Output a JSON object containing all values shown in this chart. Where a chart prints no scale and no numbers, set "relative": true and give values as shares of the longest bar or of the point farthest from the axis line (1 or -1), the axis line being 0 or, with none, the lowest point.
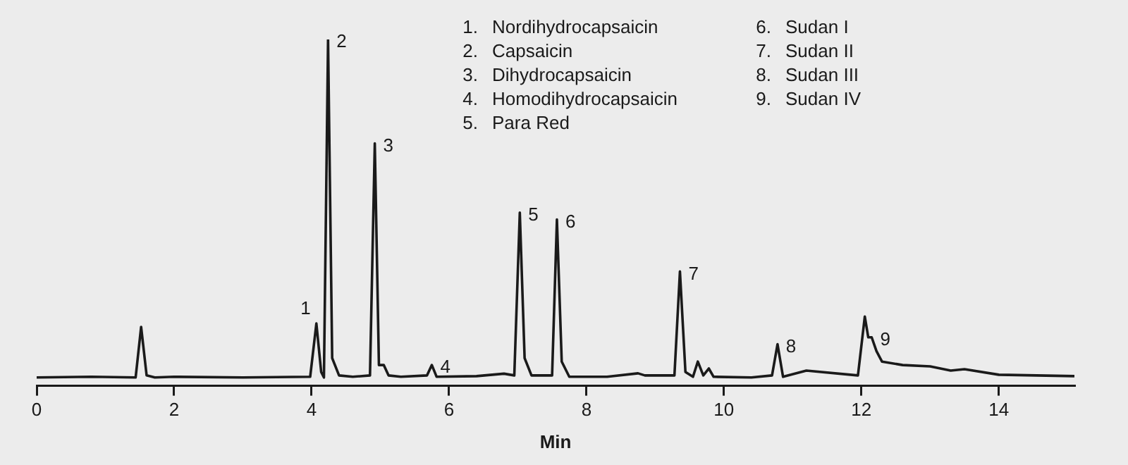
{
  "chart_data": {
    "type": "line",
    "relative": true,
    "xlabel": "Min",
    "xlim": [
      0,
      15.1
    ],
    "xticks": [
      0,
      2,
      4,
      6,
      8,
      10,
      12,
      14
    ],
    "grid": false,
    "legend": false,
    "marker": "none",
    "line_style": "solid",
    "series": [
      {
        "color": "#1a1a1a",
        "x": [
          0,
          0.8,
          1.44,
          1.52,
          1.6,
          1.72,
          2.0,
          3.0,
          3.98,
          4.07,
          4.14,
          4.18,
          4.24,
          4.3,
          4.4,
          4.6,
          4.85,
          4.92,
          4.98,
          5.05,
          5.12,
          5.3,
          5.68,
          5.75,
          5.82,
          6.4,
          6.8,
          6.95,
          7.03,
          7.1,
          7.2,
          7.45,
          7.5,
          7.57,
          7.64,
          7.75,
          8.3,
          8.75,
          8.85,
          9.28,
          9.36,
          9.44,
          9.55,
          9.62,
          9.7,
          9.78,
          9.85,
          10.4,
          10.7,
          10.78,
          10.86,
          11.2,
          11.95,
          12.05,
          12.1,
          12.15,
          12.22,
          12.3,
          12.6,
          13.0,
          13.3,
          13.5,
          14.0,
          15.1
        ],
        "values": [
          0.024,
          0.026,
          0.024,
          0.17,
          0.03,
          0.024,
          0.026,
          0.024,
          0.026,
          0.18,
          0.04,
          0.024,
          1,
          0.08,
          0.03,
          0.026,
          0.03,
          0.7,
          0.06,
          0.06,
          0.03,
          0.026,
          0.03,
          0.06,
          0.026,
          0.028,
          0.035,
          0.03,
          0.5,
          0.08,
          0.03,
          0.03,
          0.03,
          0.48,
          0.07,
          0.026,
          0.026,
          0.036,
          0.03,
          0.03,
          0.33,
          0.04,
          0.026,
          0.07,
          0.03,
          0.05,
          0.026,
          0.024,
          0.03,
          0.12,
          0.026,
          0.044,
          0.03,
          0.2,
          0.14,
          0.14,
          0.1,
          0.07,
          0.06,
          0.056,
          0.044,
          0.048,
          0.032,
          0.028
        ]
      }
    ],
    "annotations": [
      {
        "text": "1",
        "x": 4.07,
        "y": 0.18
      },
      {
        "text": "2",
        "x": 4.24,
        "y": 1
      },
      {
        "text": "3",
        "x": 4.92,
        "y": 0.7
      },
      {
        "text": "4",
        "x": 5.75,
        "y": 0.06
      },
      {
        "text": "5",
        "x": 7.03,
        "y": 0.5
      },
      {
        "text": "6",
        "x": 7.57,
        "y": 0.48
      },
      {
        "text": "7",
        "x": 9.36,
        "y": 0.33
      },
      {
        "text": "8",
        "x": 10.78,
        "y": 0.12
      },
      {
        "text": "9",
        "x": 12.15,
        "y": 0.14
      },
      "1. Nordihydrocapsaicin",
      "2. Capsaicin",
      "3. Dihydrocapsaicin",
      "4. Homodihydrocapsaicin",
      "5. Para Red",
      "6. Sudan I",
      "7. Sudan II",
      "8. Sudan III",
      "9. Sudan IV"
    ]
  }
}
